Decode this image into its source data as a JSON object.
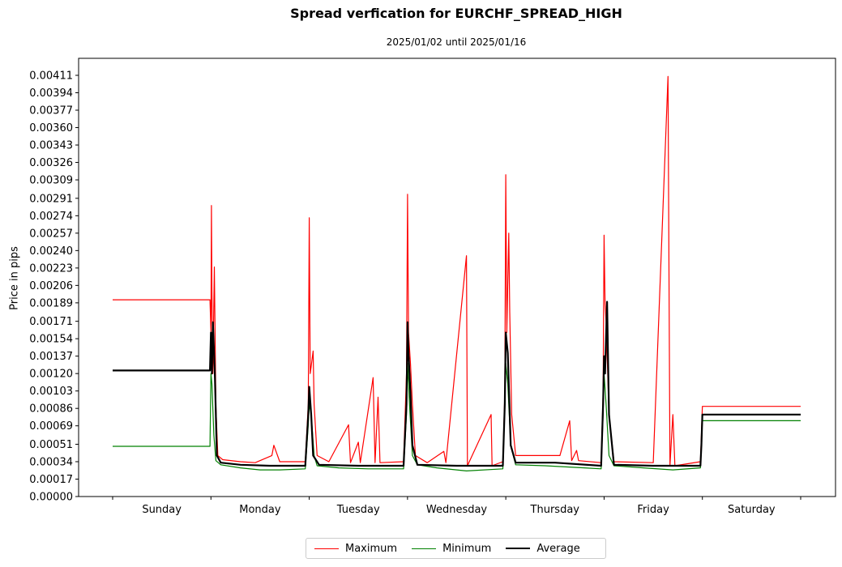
{
  "title": "Spread verfication for EURCHF_SPREAD_HIGH",
  "subtitle": "2025/01/02 until 2025/01/16",
  "ylabel": "Price in pips",
  "colors": {
    "maximum": "#ff0000",
    "minimum": "#008000",
    "average": "#000000"
  },
  "legend": [
    {
      "label": "Maximum",
      "color": "#ff0000"
    },
    {
      "label": "Minimum",
      "color": "#008000"
    },
    {
      "label": "Average",
      "color": "#000000"
    }
  ],
  "chart_data": {
    "type": "line",
    "title": "Spread verfication for EURCHF_SPREAD_HIGH",
    "subtitle": "2025/01/02 until 2025/01/16",
    "xlabel": "",
    "ylabel": "Price in pips",
    "ylim": [
      0,
      0.0044
    ],
    "yticks": [
      "0.00000",
      "0.00017",
      "0.00034",
      "0.00051",
      "0.00069",
      "0.00086",
      "0.00103",
      "0.00120",
      "0.00137",
      "0.00154",
      "0.00171",
      "0.00189",
      "0.00206",
      "0.00223",
      "0.00240",
      "0.00257",
      "0.00274",
      "0.00291",
      "0.00309",
      "0.00326",
      "0.00343",
      "0.00360",
      "0.00377",
      "0.00394",
      "0.00411"
    ],
    "categories": [
      "Sunday",
      "Monday",
      "Tuesday",
      "Wednesday",
      "Thursday",
      "Friday",
      "Saturday"
    ],
    "legend_position": "bottom-center",
    "grid": false,
    "series": [
      {
        "name": "Maximum",
        "points": [
          [
            0.0,
            0.00192
          ],
          [
            0.99,
            0.00192
          ],
          [
            1.0,
            0.0016
          ],
          [
            1.005,
            0.00284
          ],
          [
            1.01,
            0.002
          ],
          [
            1.02,
            0.0012
          ],
          [
            1.035,
            0.00224
          ],
          [
            1.05,
            0.00088
          ],
          [
            1.07,
            0.0004
          ],
          [
            1.12,
            0.00036
          ],
          [
            1.3,
            0.00034
          ],
          [
            1.45,
            0.00033
          ],
          [
            1.62,
            0.0004
          ],
          [
            1.64,
            0.0005
          ],
          [
            1.7,
            0.00034
          ],
          [
            1.96,
            0.00034
          ],
          [
            1.99,
            0.0009
          ],
          [
            2.0,
            0.00272
          ],
          [
            2.01,
            0.0012
          ],
          [
            2.02,
            0.00127
          ],
          [
            2.04,
            0.00142
          ],
          [
            2.05,
            0.0009
          ],
          [
            2.08,
            0.0004
          ],
          [
            2.2,
            0.00034
          ],
          [
            2.4,
            0.0007
          ],
          [
            2.42,
            0.00033
          ],
          [
            2.5,
            0.00053
          ],
          [
            2.52,
            0.00033
          ],
          [
            2.65,
            0.00116
          ],
          [
            2.67,
            0.00033
          ],
          [
            2.7,
            0.00097
          ],
          [
            2.72,
            0.00033
          ],
          [
            2.96,
            0.00034
          ],
          [
            2.99,
            0.0012
          ],
          [
            3.0,
            0.00295
          ],
          [
            3.01,
            0.0016
          ],
          [
            3.03,
            0.0013
          ],
          [
            3.05,
            0.0009
          ],
          [
            3.08,
            0.0004
          ],
          [
            3.2,
            0.00033
          ],
          [
            3.37,
            0.00044
          ],
          [
            3.39,
            0.00033
          ],
          [
            3.6,
            0.00235
          ],
          [
            3.61,
            0.0003
          ],
          [
            3.85,
            0.0008
          ],
          [
            3.86,
            0.0003
          ],
          [
            3.97,
            0.00034
          ],
          [
            3.99,
            0.001
          ],
          [
            4.0,
            0.00314
          ],
          [
            4.01,
            0.0016
          ],
          [
            4.03,
            0.00257
          ],
          [
            4.04,
            0.0018
          ],
          [
            4.06,
            0.0008
          ],
          [
            4.1,
            0.0004
          ],
          [
            4.3,
            0.0004
          ],
          [
            4.55,
            0.0004
          ],
          [
            4.65,
            0.00074
          ],
          [
            4.67,
            0.00035
          ],
          [
            4.72,
            0.00045
          ],
          [
            4.74,
            0.00035
          ],
          [
            4.97,
            0.00033
          ],
          [
            4.99,
            0.001
          ],
          [
            5.0,
            0.00255
          ],
          [
            5.01,
            0.0019
          ],
          [
            5.02,
            0.0017
          ],
          [
            5.05,
            0.0008
          ],
          [
            5.1,
            0.00034
          ],
          [
            5.5,
            0.00033
          ],
          [
            5.65,
            0.0041
          ],
          [
            5.67,
            0.0003
          ],
          [
            5.7,
            0.0008
          ],
          [
            5.72,
            0.0003
          ],
          [
            5.98,
            0.00034
          ],
          [
            5.99,
            0.0006
          ],
          [
            6.0,
            0.00088
          ],
          [
            7.0,
            0.00088
          ]
        ]
      },
      {
        "name": "Minimum",
        "points": [
          [
            0.0,
            0.00049
          ],
          [
            0.99,
            0.00049
          ],
          [
            1.0,
            0.0012
          ],
          [
            1.01,
            0.0011
          ],
          [
            1.03,
            0.0006
          ],
          [
            1.05,
            0.00035
          ],
          [
            1.1,
            0.00031
          ],
          [
            1.3,
            0.00028
          ],
          [
            1.5,
            0.00026
          ],
          [
            1.7,
            0.00026
          ],
          [
            1.96,
            0.00027
          ],
          [
            1.99,
            0.0007
          ],
          [
            2.0,
            0.0009
          ],
          [
            2.02,
            0.0008
          ],
          [
            2.05,
            0.0004
          ],
          [
            2.08,
            0.0003
          ],
          [
            2.3,
            0.00028
          ],
          [
            2.6,
            0.00027
          ],
          [
            2.96,
            0.00027
          ],
          [
            2.99,
            0.0008
          ],
          [
            3.0,
            0.0013
          ],
          [
            3.02,
            0.0009
          ],
          [
            3.05,
            0.0004
          ],
          [
            3.1,
            0.00031
          ],
          [
            3.3,
            0.00028
          ],
          [
            3.6,
            0.00025
          ],
          [
            3.97,
            0.00027
          ],
          [
            3.99,
            0.0009
          ],
          [
            4.0,
            0.0013
          ],
          [
            4.02,
            0.0011
          ],
          [
            4.05,
            0.0005
          ],
          [
            4.1,
            0.00031
          ],
          [
            4.4,
            0.0003
          ],
          [
            4.8,
            0.00028
          ],
          [
            4.97,
            0.00027
          ],
          [
            4.99,
            0.0008
          ],
          [
            5.0,
            0.0012
          ],
          [
            5.02,
            0.0009
          ],
          [
            5.05,
            0.0004
          ],
          [
            5.1,
            0.0003
          ],
          [
            5.4,
            0.00028
          ],
          [
            5.7,
            0.00026
          ],
          [
            5.98,
            0.00028
          ],
          [
            5.99,
            0.0005
          ],
          [
            6.0,
            0.00074
          ],
          [
            7.0,
            0.00074
          ]
        ]
      },
      {
        "name": "Average",
        "points": [
          [
            0.0,
            0.00123
          ],
          [
            0.99,
            0.00123
          ],
          [
            1.0,
            0.0016
          ],
          [
            1.01,
            0.0012
          ],
          [
            1.02,
            0.0017
          ],
          [
            1.04,
            0.0012
          ],
          [
            1.06,
            0.0004
          ],
          [
            1.1,
            0.00033
          ],
          [
            1.3,
            0.00031
          ],
          [
            1.6,
            0.0003
          ],
          [
            1.96,
            0.0003
          ],
          [
            1.99,
            0.0008
          ],
          [
            2.0,
            0.00107
          ],
          [
            2.02,
            0.0008
          ],
          [
            2.04,
            0.0004
          ],
          [
            2.1,
            0.00031
          ],
          [
            2.5,
            0.0003
          ],
          [
            2.96,
            0.0003
          ],
          [
            2.99,
            0.0009
          ],
          [
            3.0,
            0.0017
          ],
          [
            3.01,
            0.0014
          ],
          [
            3.03,
            0.001
          ],
          [
            3.05,
            0.0005
          ],
          [
            3.1,
            0.00031
          ],
          [
            3.5,
            0.0003
          ],
          [
            3.97,
            0.0003
          ],
          [
            3.99,
            0.0009
          ],
          [
            4.0,
            0.0016
          ],
          [
            4.02,
            0.0014
          ],
          [
            4.05,
            0.0005
          ],
          [
            4.1,
            0.00033
          ],
          [
            4.5,
            0.00033
          ],
          [
            4.97,
            0.0003
          ],
          [
            4.99,
            0.0009
          ],
          [
            5.0,
            0.00137
          ],
          [
            5.01,
            0.0012
          ],
          [
            5.03,
            0.0019
          ],
          [
            5.05,
            0.0008
          ],
          [
            5.1,
            0.00031
          ],
          [
            5.5,
            0.0003
          ],
          [
            5.98,
            0.0003
          ],
          [
            5.99,
            0.0005
          ],
          [
            6.0,
            0.0008
          ],
          [
            7.0,
            0.0008
          ]
        ]
      }
    ]
  }
}
